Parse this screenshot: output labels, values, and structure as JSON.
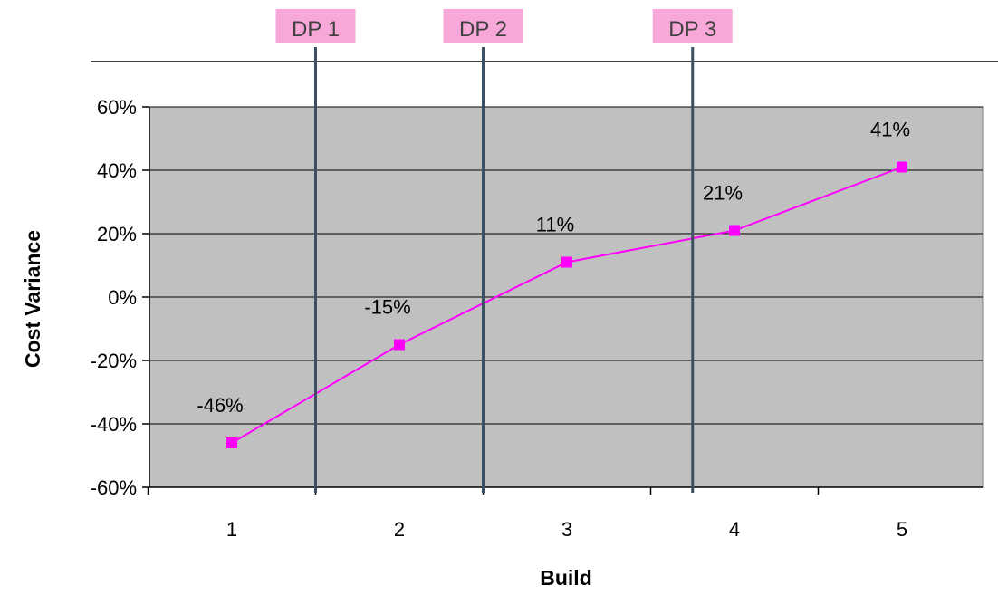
{
  "chart_data": {
    "type": "line",
    "title": "",
    "xlabel": "Build",
    "ylabel": "Cost Variance",
    "categories": [
      "1",
      "2",
      "3",
      "4",
      "5"
    ],
    "series": [
      {
        "values": [
          -46,
          -15,
          11,
          21,
          41
        ],
        "data_labels": [
          "-46%",
          "-15%",
          "11%",
          "21%",
          "41%"
        ],
        "color": "#ff00ff",
        "marker": "square"
      }
    ],
    "ylim": [
      -60,
      60
    ],
    "yticks": [
      60,
      40,
      20,
      0,
      -20,
      -40,
      -60
    ],
    "ytick_labels": [
      "60%",
      "40%",
      "20%",
      "0%",
      "-20%",
      "-40%",
      "-60%"
    ],
    "grid": true,
    "plot_background": "#c0c0c0",
    "grid_color": "#000000",
    "decision_points": [
      {
        "label": "DP 1",
        "x": 1.5
      },
      {
        "label": "DP 2",
        "x": 2.5
      },
      {
        "label": "DP 3",
        "x": 3.75
      }
    ],
    "decision_line_color": "#3d4f63",
    "decision_label_bg": "#f7a8d8"
  }
}
